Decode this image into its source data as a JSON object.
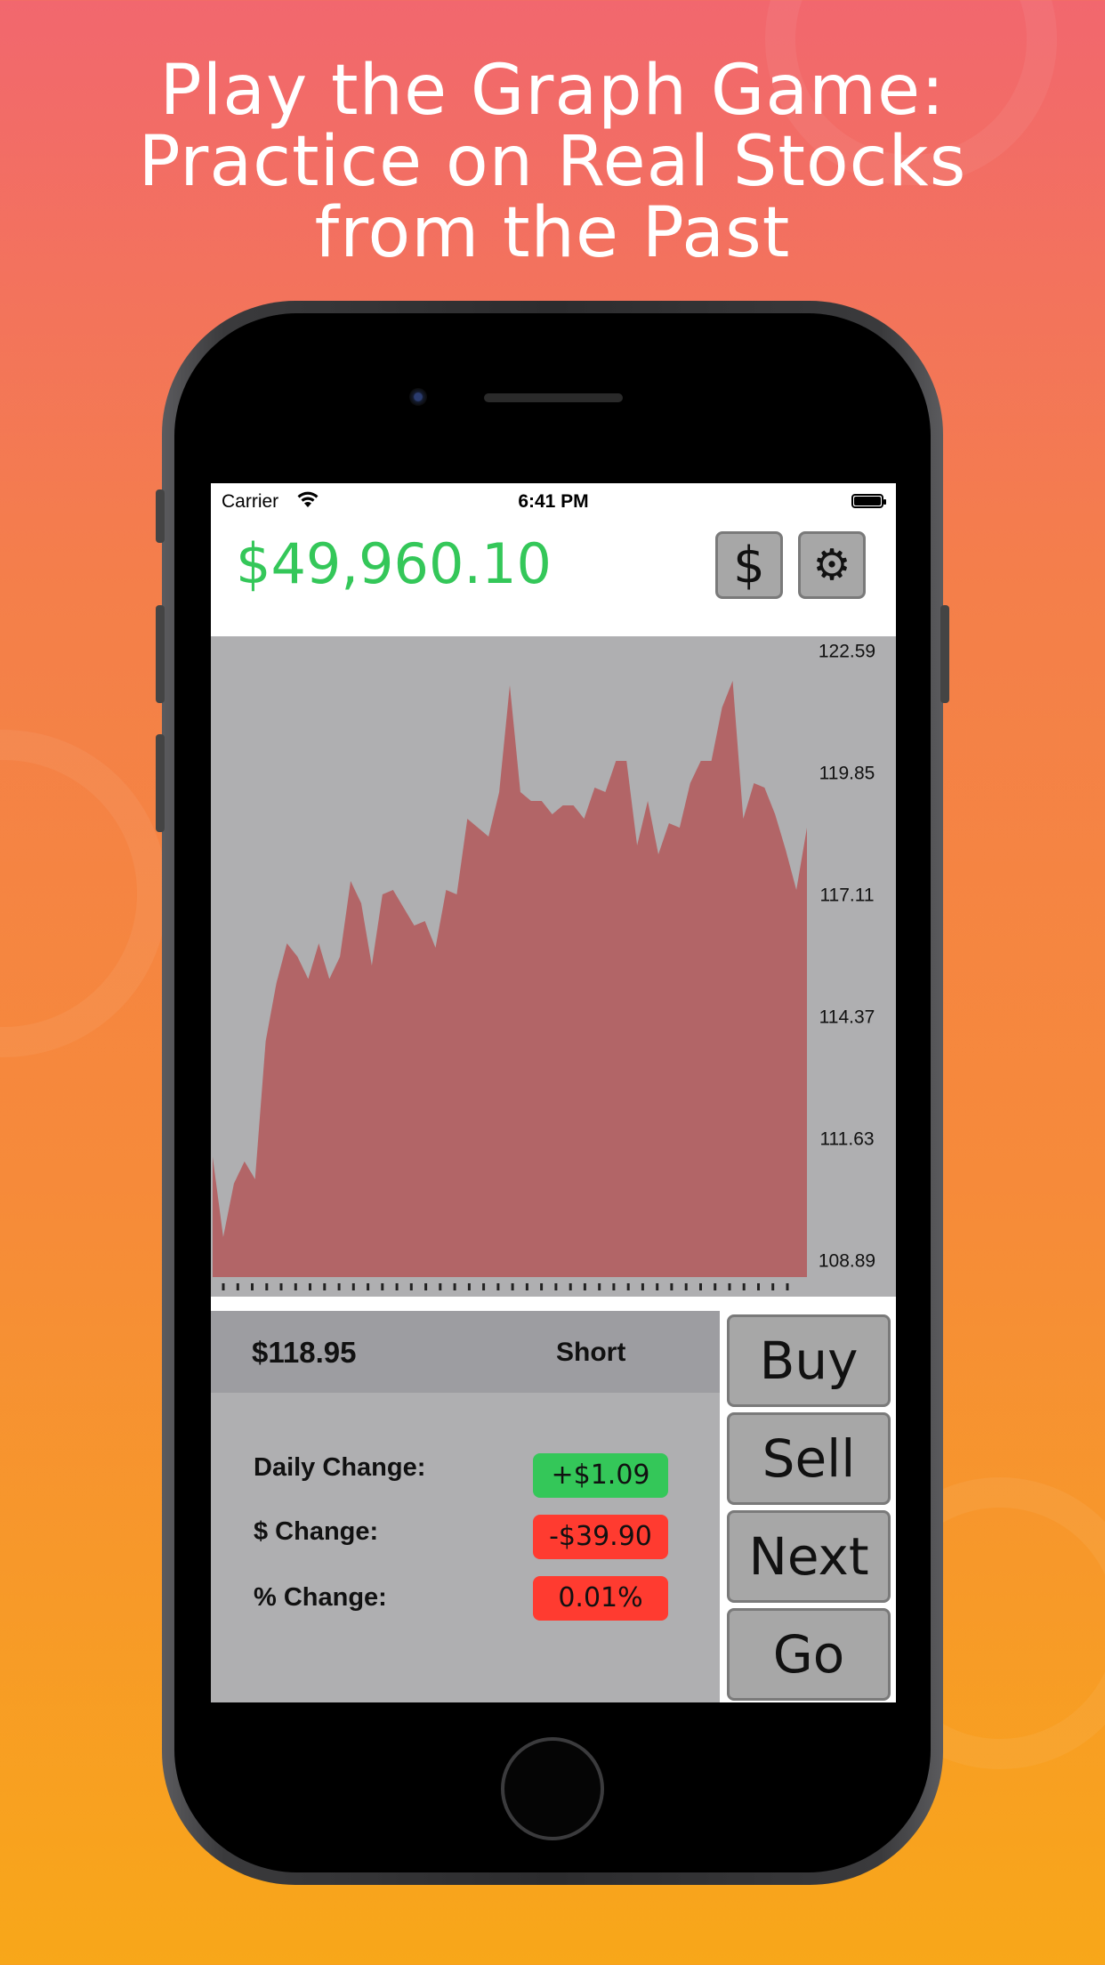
{
  "headline": {
    "line1": "Play the Graph Game:",
    "line2": "Practice on Real Stocks",
    "line3": "from the Past"
  },
  "status_bar": {
    "carrier": "Carrier",
    "time": "6:41 PM",
    "icons": [
      "wifi-icon",
      "battery-icon"
    ]
  },
  "header": {
    "balance": "$49,960.10",
    "balance_color": "#34c759",
    "buttons": [
      {
        "name": "dollar-button",
        "glyph": "$"
      },
      {
        "name": "settings-button",
        "glyph": "⚙",
        "icon": "gear-icon"
      }
    ]
  },
  "chart_data": {
    "type": "area",
    "ylim": [
      108.5,
      122.9
    ],
    "y_ticks": [
      "122.59",
      "119.85",
      "117.11",
      "114.37",
      "111.63",
      "108.89"
    ],
    "y_tick_values": [
      122.59,
      119.85,
      117.11,
      114.37,
      111.63,
      108.89
    ],
    "area_color": "#b26567",
    "background_color": "#afafb1",
    "grid": false,
    "x_ticks_count": 40,
    "values": [
      111.2,
      109.4,
      110.6,
      111.1,
      110.7,
      113.8,
      115.1,
      116.0,
      115.7,
      115.2,
      116.0,
      115.2,
      115.7,
      117.4,
      116.9,
      115.5,
      117.1,
      117.2,
      116.8,
      116.4,
      116.5,
      115.9,
      117.2,
      117.1,
      118.8,
      118.6,
      118.4,
      119.4,
      121.8,
      119.4,
      119.2,
      119.2,
      118.9,
      119.1,
      119.1,
      118.8,
      119.5,
      119.4,
      120.1,
      120.1,
      118.2,
      119.2,
      118.0,
      118.7,
      118.6,
      119.6,
      120.1,
      120.1,
      121.3,
      121.9,
      118.8,
      119.6,
      119.5,
      118.9,
      118.1,
      117.2,
      118.6
    ]
  },
  "info": {
    "price": "$118.95",
    "position": "Short",
    "rows": [
      {
        "label": "Daily Change:",
        "value": "+$1.09",
        "color": "#34c759"
      },
      {
        "label": "$ Change:",
        "value": "-$39.90",
        "color": "#ff3b30"
      },
      {
        "label": "% Change:",
        "value": "0.01%",
        "color": "#ff3b30"
      }
    ]
  },
  "actions": {
    "buy": "Buy",
    "sell": "Sell",
    "next": "Next",
    "go": "Go"
  }
}
